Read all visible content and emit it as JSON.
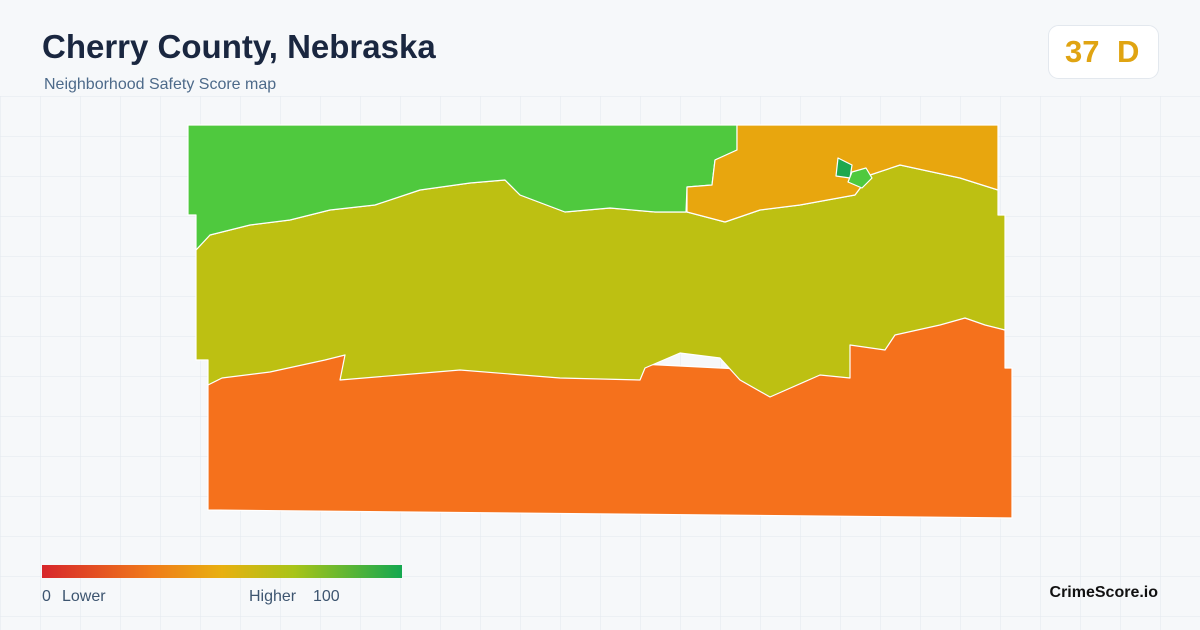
{
  "header": {
    "title": "Cherry County, Nebraska",
    "subtitle": "Neighborhood Safety Score map"
  },
  "score": {
    "value": 37,
    "grade": "D"
  },
  "legend": {
    "min": 0,
    "min_label": "Lower",
    "max_label": "Higher",
    "max": 100
  },
  "footer": {
    "brand": "CrimeScore.io"
  }
}
